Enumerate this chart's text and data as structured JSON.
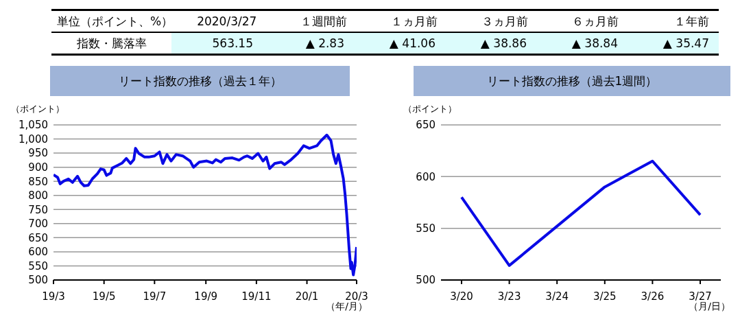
{
  "chart_data": [
    {
      "type": "other",
      "annotations": [
        "単位（ポイント、%）"
      ],
      "categories": [
        "2020/3/27",
        "１週間前",
        "１ヵ月前",
        "３ヵ月前",
        "６ヵ月前",
        "１年前"
      ],
      "y_categories": [
        "指数・騰落率"
      ],
      "cell_labels": [
        [
          "563.15",
          "▲ 2.83",
          "▲ 41.06",
          "▲ 38.86",
          "▲ 38.84",
          "▲ 35.47"
        ]
      ]
    },
    {
      "type": "line",
      "title": "リート指数の推移（過去１年）",
      "ylabel": "（ポイント）",
      "xlabel": "（年/月）",
      "grid": "y",
      "x": [
        "2019-03-27",
        "2019-04-01",
        "2019-04-04",
        "2019-04-08",
        "2019-04-14",
        "2019-04-19",
        "2019-04-25",
        "2019-04-29",
        "2019-05-03",
        "2019-05-08",
        "2019-05-13",
        "2019-05-19",
        "2019-05-23",
        "2019-05-27",
        "2019-05-30",
        "2019-06-04",
        "2019-06-06",
        "2019-06-12",
        "2019-06-18",
        "2019-06-23",
        "2019-06-28",
        "2019-07-02",
        "2019-07-04",
        "2019-07-08",
        "2019-07-15",
        "2019-07-20",
        "2019-07-27",
        "2019-08-02",
        "2019-08-06",
        "2019-08-11",
        "2019-08-16",
        "2019-08-22",
        "2019-08-30",
        "2019-09-08",
        "2019-09-12",
        "2019-09-19",
        "2019-09-28",
        "2019-10-05",
        "2019-10-09",
        "2019-10-15",
        "2019-10-20",
        "2019-10-29",
        "2019-11-06",
        "2019-11-12",
        "2019-11-16",
        "2019-11-22",
        "2019-11-29",
        "2019-12-05",
        "2019-12-09",
        "2019-12-13",
        "2019-12-19",
        "2019-12-27",
        "2019-12-31",
        "2020-01-08",
        "2020-01-16",
        "2020-01-23",
        "2020-01-30",
        "2020-02-08",
        "2020-02-13",
        "2020-02-20",
        "2020-02-25",
        "2020-02-28",
        "2020-03-02",
        "2020-03-05",
        "2020-03-08",
        "2020-03-11",
        "2020-03-13",
        "2020-03-15",
        "2020-03-18",
        "2020-03-20",
        "2020-03-21",
        "2020-03-23",
        "2020-03-25",
        "2020-03-27"
      ],
      "series": [
        {
          "color": "#0a0ae6",
          "values": [
            873,
            864,
            841,
            850,
            858,
            846,
            868,
            846,
            834,
            836,
            859,
            877,
            894,
            891,
            871,
            879,
            897,
            906,
            915,
            931,
            913,
            927,
            967,
            949,
            936,
            936,
            940,
            954,
            913,
            945,
            922,
            945,
            940,
            922,
            900,
            918,
            922,
            915,
            927,
            918,
            931,
            933,
            925,
            936,
            940,
            931,
            949,
            922,
            936,
            895,
            913,
            918,
            909,
            927,
            949,
            976,
            967,
            976,
            994,
            1014,
            994,
            945,
            913,
            945,
            904,
            859,
            805,
            734,
            608,
            540,
            563,
            518,
            554,
            617
          ]
        }
      ],
      "xlim": [
        "2019-03-27",
        "2020-03-27"
      ],
      "xticks": [
        {
          "value": "2019-03-27",
          "label": "19/3"
        },
        {
          "value": "2019-05-27",
          "label": "19/5"
        },
        {
          "value": "2019-07-27",
          "label": "19/7"
        },
        {
          "value": "2019-09-27",
          "label": "19/9"
        },
        {
          "value": "2019-11-27",
          "label": "19/11"
        },
        {
          "value": "2020-01-27",
          "label": "20/1"
        },
        {
          "value": "2020-03-27",
          "label": "20/3"
        }
      ],
      "ylim": [
        500,
        1050
      ],
      "yticks": [
        500,
        550,
        600,
        650,
        700,
        750,
        800,
        850,
        900,
        950,
        {
          "value": 1000,
          "label": "1,000"
        },
        {
          "value": 1050,
          "label": "1,050"
        }
      ]
    },
    {
      "type": "line",
      "title": "リート指数の推移（過去1週間）",
      "ylabel": "（ポイント）",
      "xlabel": "（月/日）",
      "grid": "y",
      "categories": [
        "3/20",
        "3/23",
        "3/24",
        "3/25",
        "3/26",
        "3/27"
      ],
      "series": [
        {
          "color": "#0a0ae6",
          "values": [
            580,
            514,
            552,
            590,
            615,
            563
          ]
        }
      ],
      "ylim": [
        500,
        650
      ],
      "yticks": [
        500,
        550,
        600,
        650
      ]
    }
  ]
}
